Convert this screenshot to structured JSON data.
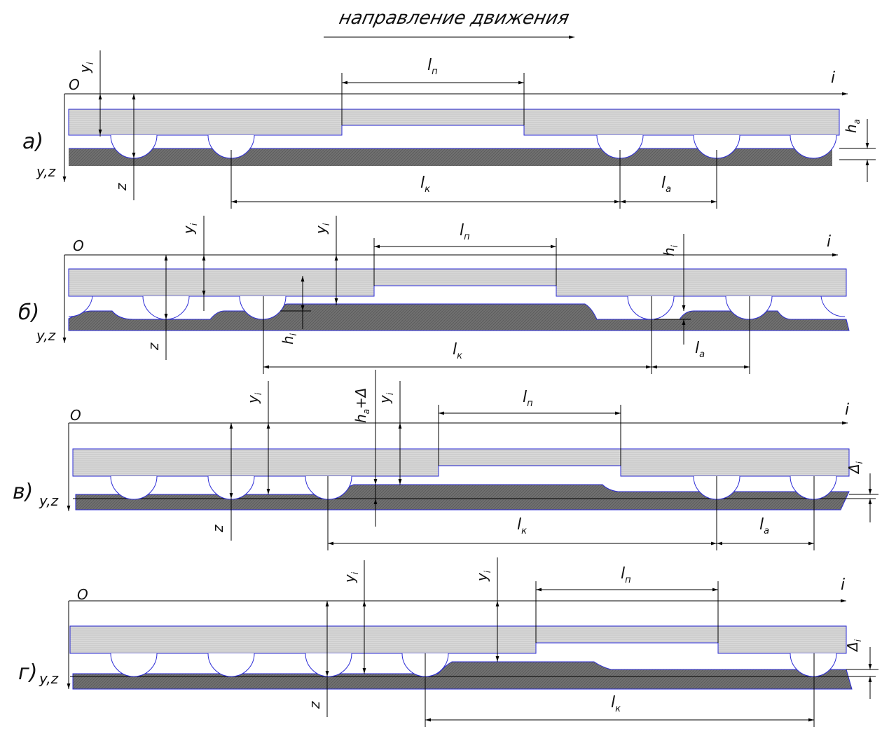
{
  "title": "направление движения",
  "colors": {
    "upper_band": "#cfcfcf",
    "lower_band": "#6b6b6b",
    "outline": "#2b2bd6",
    "line": "#000000"
  },
  "common_labels": {
    "origin": "O",
    "axis_i": "i",
    "axis_yz": "y,z"
  },
  "panels": [
    {
      "id": "a",
      "label": "а)",
      "dims": {
        "l_n": "l",
        "l_n_sub": "п",
        "l_k": "l",
        "l_k_sub": "к",
        "l_a": "l",
        "l_a_sub": "a",
        "h": "h",
        "h_sub": "a",
        "y": "y",
        "y_sub": "i",
        "z": "z"
      }
    },
    {
      "id": "b",
      "label": "б)",
      "dims": {
        "l_n": "l",
        "l_n_sub": "п",
        "l_k": "l",
        "l_k_sub": "к",
        "l_a": "l",
        "l_a_sub": "a",
        "h": "h",
        "h_sub": "i",
        "y": "y",
        "y_sub": "i",
        "z": "z"
      }
    },
    {
      "id": "v",
      "label": "в)",
      "dims": {
        "l_n": "l",
        "l_n_sub": "п",
        "l_k": "l",
        "l_k_sub": "к",
        "l_a": "l",
        "l_a_sub": "a",
        "h": "h",
        "h_sub": "a",
        "h_extra": "+Δ",
        "delta": "Δ",
        "delta_sub": "i",
        "y": "y",
        "y_sub": "i",
        "z": "z"
      }
    },
    {
      "id": "g",
      "label": "г)",
      "dims": {
        "l_n": "l",
        "l_n_sub": "п",
        "l_k": "l",
        "l_k_sub": "к",
        "delta": "Δ",
        "delta_sub": "i",
        "y": "y",
        "y_sub": "i",
        "z": "z"
      }
    }
  ]
}
